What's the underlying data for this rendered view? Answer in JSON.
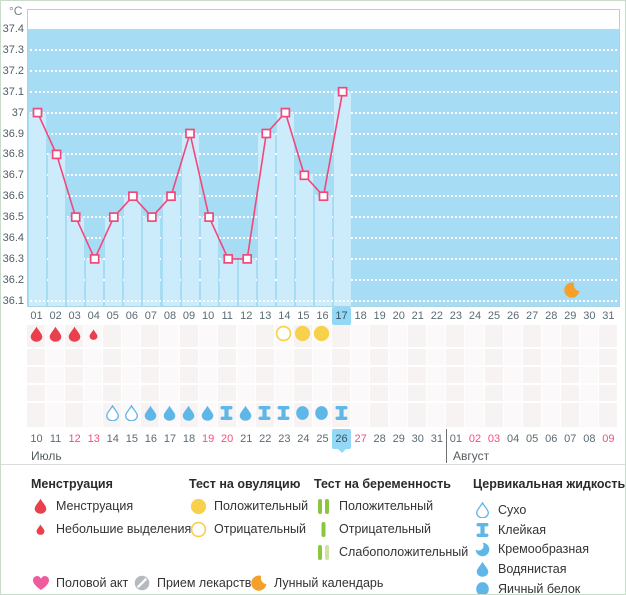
{
  "chart_data": {
    "type": "line",
    "y_axis_unit": "°C",
    "y_ticks": [
      "37.4",
      "37.3",
      "37.2",
      "37.1",
      "37",
      "36.9",
      "36.8",
      "36.7",
      "36.6",
      "36.5",
      "36.4",
      "36.3",
      "36.2",
      "36.1"
    ],
    "ylim": [
      36.1,
      37.4
    ],
    "x_days": [
      "01",
      "02",
      "03",
      "04",
      "05",
      "06",
      "07",
      "08",
      "09",
      "10",
      "11",
      "12",
      "13",
      "14",
      "15",
      "16",
      "17",
      "18",
      "19",
      "20",
      "21",
      "22",
      "23",
      "24",
      "25",
      "26",
      "27",
      "28",
      "29",
      "30",
      "31"
    ],
    "highlighted_day": "17",
    "series": [
      {
        "name": "temperature_c",
        "points": [
          {
            "day": 1,
            "value": 37.0
          },
          {
            "day": 2,
            "value": 36.8
          },
          {
            "day": 3,
            "value": 36.5
          },
          {
            "day": 4,
            "value": 36.3
          },
          {
            "day": 5,
            "value": 36.5
          },
          {
            "day": 6,
            "value": 36.6
          },
          {
            "day": 7,
            "value": 36.5
          },
          {
            "day": 8,
            "value": 36.6
          },
          {
            "day": 9,
            "value": 36.9
          },
          {
            "day": 10,
            "value": 36.5
          },
          {
            "day": 11,
            "value": 36.3
          },
          {
            "day": 12,
            "value": 36.3
          },
          {
            "day": 13,
            "value": 36.9
          },
          {
            "day": 14,
            "value": 37.0
          },
          {
            "day": 15,
            "value": 36.7
          },
          {
            "day": 16,
            "value": 36.6
          },
          {
            "day": 17,
            "value": 37.1
          }
        ]
      }
    ],
    "moon_marker_day": 29
  },
  "grid": {
    "menstruation": [
      {
        "day": 1,
        "type": "heavy"
      },
      {
        "day": 2,
        "type": "heavy"
      },
      {
        "day": 3,
        "type": "heavy"
      },
      {
        "day": 4,
        "type": "light"
      }
    ],
    "ovulation_test": [
      {
        "day": 14,
        "result": "negative"
      },
      {
        "day": 15,
        "result": "positive"
      },
      {
        "day": 16,
        "result": "positive"
      }
    ],
    "cervical_fluid": [
      {
        "day": 5,
        "type": "dry"
      },
      {
        "day": 6,
        "type": "dry"
      },
      {
        "day": 7,
        "type": "watery"
      },
      {
        "day": 8,
        "type": "watery"
      },
      {
        "day": 9,
        "type": "watery"
      },
      {
        "day": 10,
        "type": "watery"
      },
      {
        "day": 11,
        "type": "sticky"
      },
      {
        "day": 12,
        "type": "watery"
      },
      {
        "day": 13,
        "type": "sticky"
      },
      {
        "day": 14,
        "type": "sticky"
      },
      {
        "day": 15,
        "type": "eggwhite"
      },
      {
        "day": 16,
        "type": "eggwhite"
      },
      {
        "day": 17,
        "type": "sticky"
      }
    ],
    "empty_row_count": 3
  },
  "calendar": {
    "july_label": "Июль",
    "august_label": "Август",
    "highlighted_date": "26",
    "days": [
      {
        "label": "10",
        "month": "july"
      },
      {
        "label": "11",
        "month": "july"
      },
      {
        "label": "12",
        "month": "july",
        "weekend": true
      },
      {
        "label": "13",
        "month": "july",
        "weekend": true
      },
      {
        "label": "14",
        "month": "july"
      },
      {
        "label": "15",
        "month": "july"
      },
      {
        "label": "16",
        "month": "july"
      },
      {
        "label": "17",
        "month": "july"
      },
      {
        "label": "18",
        "month": "july"
      },
      {
        "label": "19",
        "month": "july",
        "weekend": true
      },
      {
        "label": "20",
        "month": "july",
        "weekend": true
      },
      {
        "label": "21",
        "month": "july"
      },
      {
        "label": "22",
        "month": "july"
      },
      {
        "label": "23",
        "month": "july"
      },
      {
        "label": "24",
        "month": "july"
      },
      {
        "label": "25",
        "month": "july"
      },
      {
        "label": "26",
        "month": "july",
        "highlighted": true
      },
      {
        "label": "27",
        "month": "july",
        "weekend": true
      },
      {
        "label": "28",
        "month": "july"
      },
      {
        "label": "29",
        "month": "july"
      },
      {
        "label": "30",
        "month": "july"
      },
      {
        "label": "31",
        "month": "july"
      },
      {
        "label": "01",
        "month": "august"
      },
      {
        "label": "02",
        "month": "august",
        "weekend": true
      },
      {
        "label": "03",
        "month": "august",
        "weekend": true
      },
      {
        "label": "04",
        "month": "august"
      },
      {
        "label": "05",
        "month": "august"
      },
      {
        "label": "06",
        "month": "august"
      },
      {
        "label": "07",
        "month": "august"
      },
      {
        "label": "08",
        "month": "august"
      },
      {
        "label": "09",
        "month": "august",
        "weekend": true
      }
    ]
  },
  "legend": {
    "columns": [
      {
        "title": "Менструация",
        "items": [
          {
            "icon": "drop-red-large",
            "label": "Менструация"
          },
          {
            "icon": "drop-red-small",
            "label": "Небольшие выделения"
          }
        ]
      },
      {
        "title": "Тест на овуляцию",
        "items": [
          {
            "icon": "circle-yellow-filled",
            "label": "Положительный"
          },
          {
            "icon": "circle-yellow-outline",
            "label": "Отрицательный"
          }
        ]
      },
      {
        "title": "Тест на беременность",
        "items": [
          {
            "icon": "bars-green-two",
            "label": "Положительный"
          },
          {
            "icon": "bar-green-one",
            "label": "Отрицательный"
          },
          {
            "icon": "bars-green-weak",
            "label": "Слабоположительный"
          }
        ]
      },
      {
        "title": "Цервикальная жидкость",
        "items": [
          {
            "icon": "drop-blue-outline",
            "label": "Сухо"
          },
          {
            "icon": "ibeam-blue",
            "label": "Клейкая"
          },
          {
            "icon": "crescent-blue",
            "label": "Кремообразная"
          },
          {
            "icon": "drop-blue-filled",
            "label": "Водянистая"
          },
          {
            "icon": "circle-blue-filled",
            "label": "Яичный белок"
          }
        ]
      }
    ],
    "extras": [
      {
        "icon": "heart-pink",
        "label": "Половой акт"
      },
      {
        "icon": "pill-grey",
        "label": "Прием лекарств"
      },
      {
        "icon": "moon-orange",
        "label": "Лунный календарь"
      }
    ]
  },
  "colors": {
    "chart_bg": "#a6dcf4",
    "bar": "#cdecfb",
    "line_pink": "#f1487c",
    "highlight_blue": "#93d8f6",
    "menstruation_red": "#e9404d",
    "ovulation_yellow": "#f7d14b",
    "cervical_blue": "#5fb7e8",
    "pregnancy_green": "#8cc63e",
    "pregnancy_green_pale": "#cde4a0",
    "moon_orange": "#f6a02c",
    "heart_pink": "#ef5b9d",
    "pill_grey": "#b6babe",
    "weekend_red": "#f2517c"
  }
}
